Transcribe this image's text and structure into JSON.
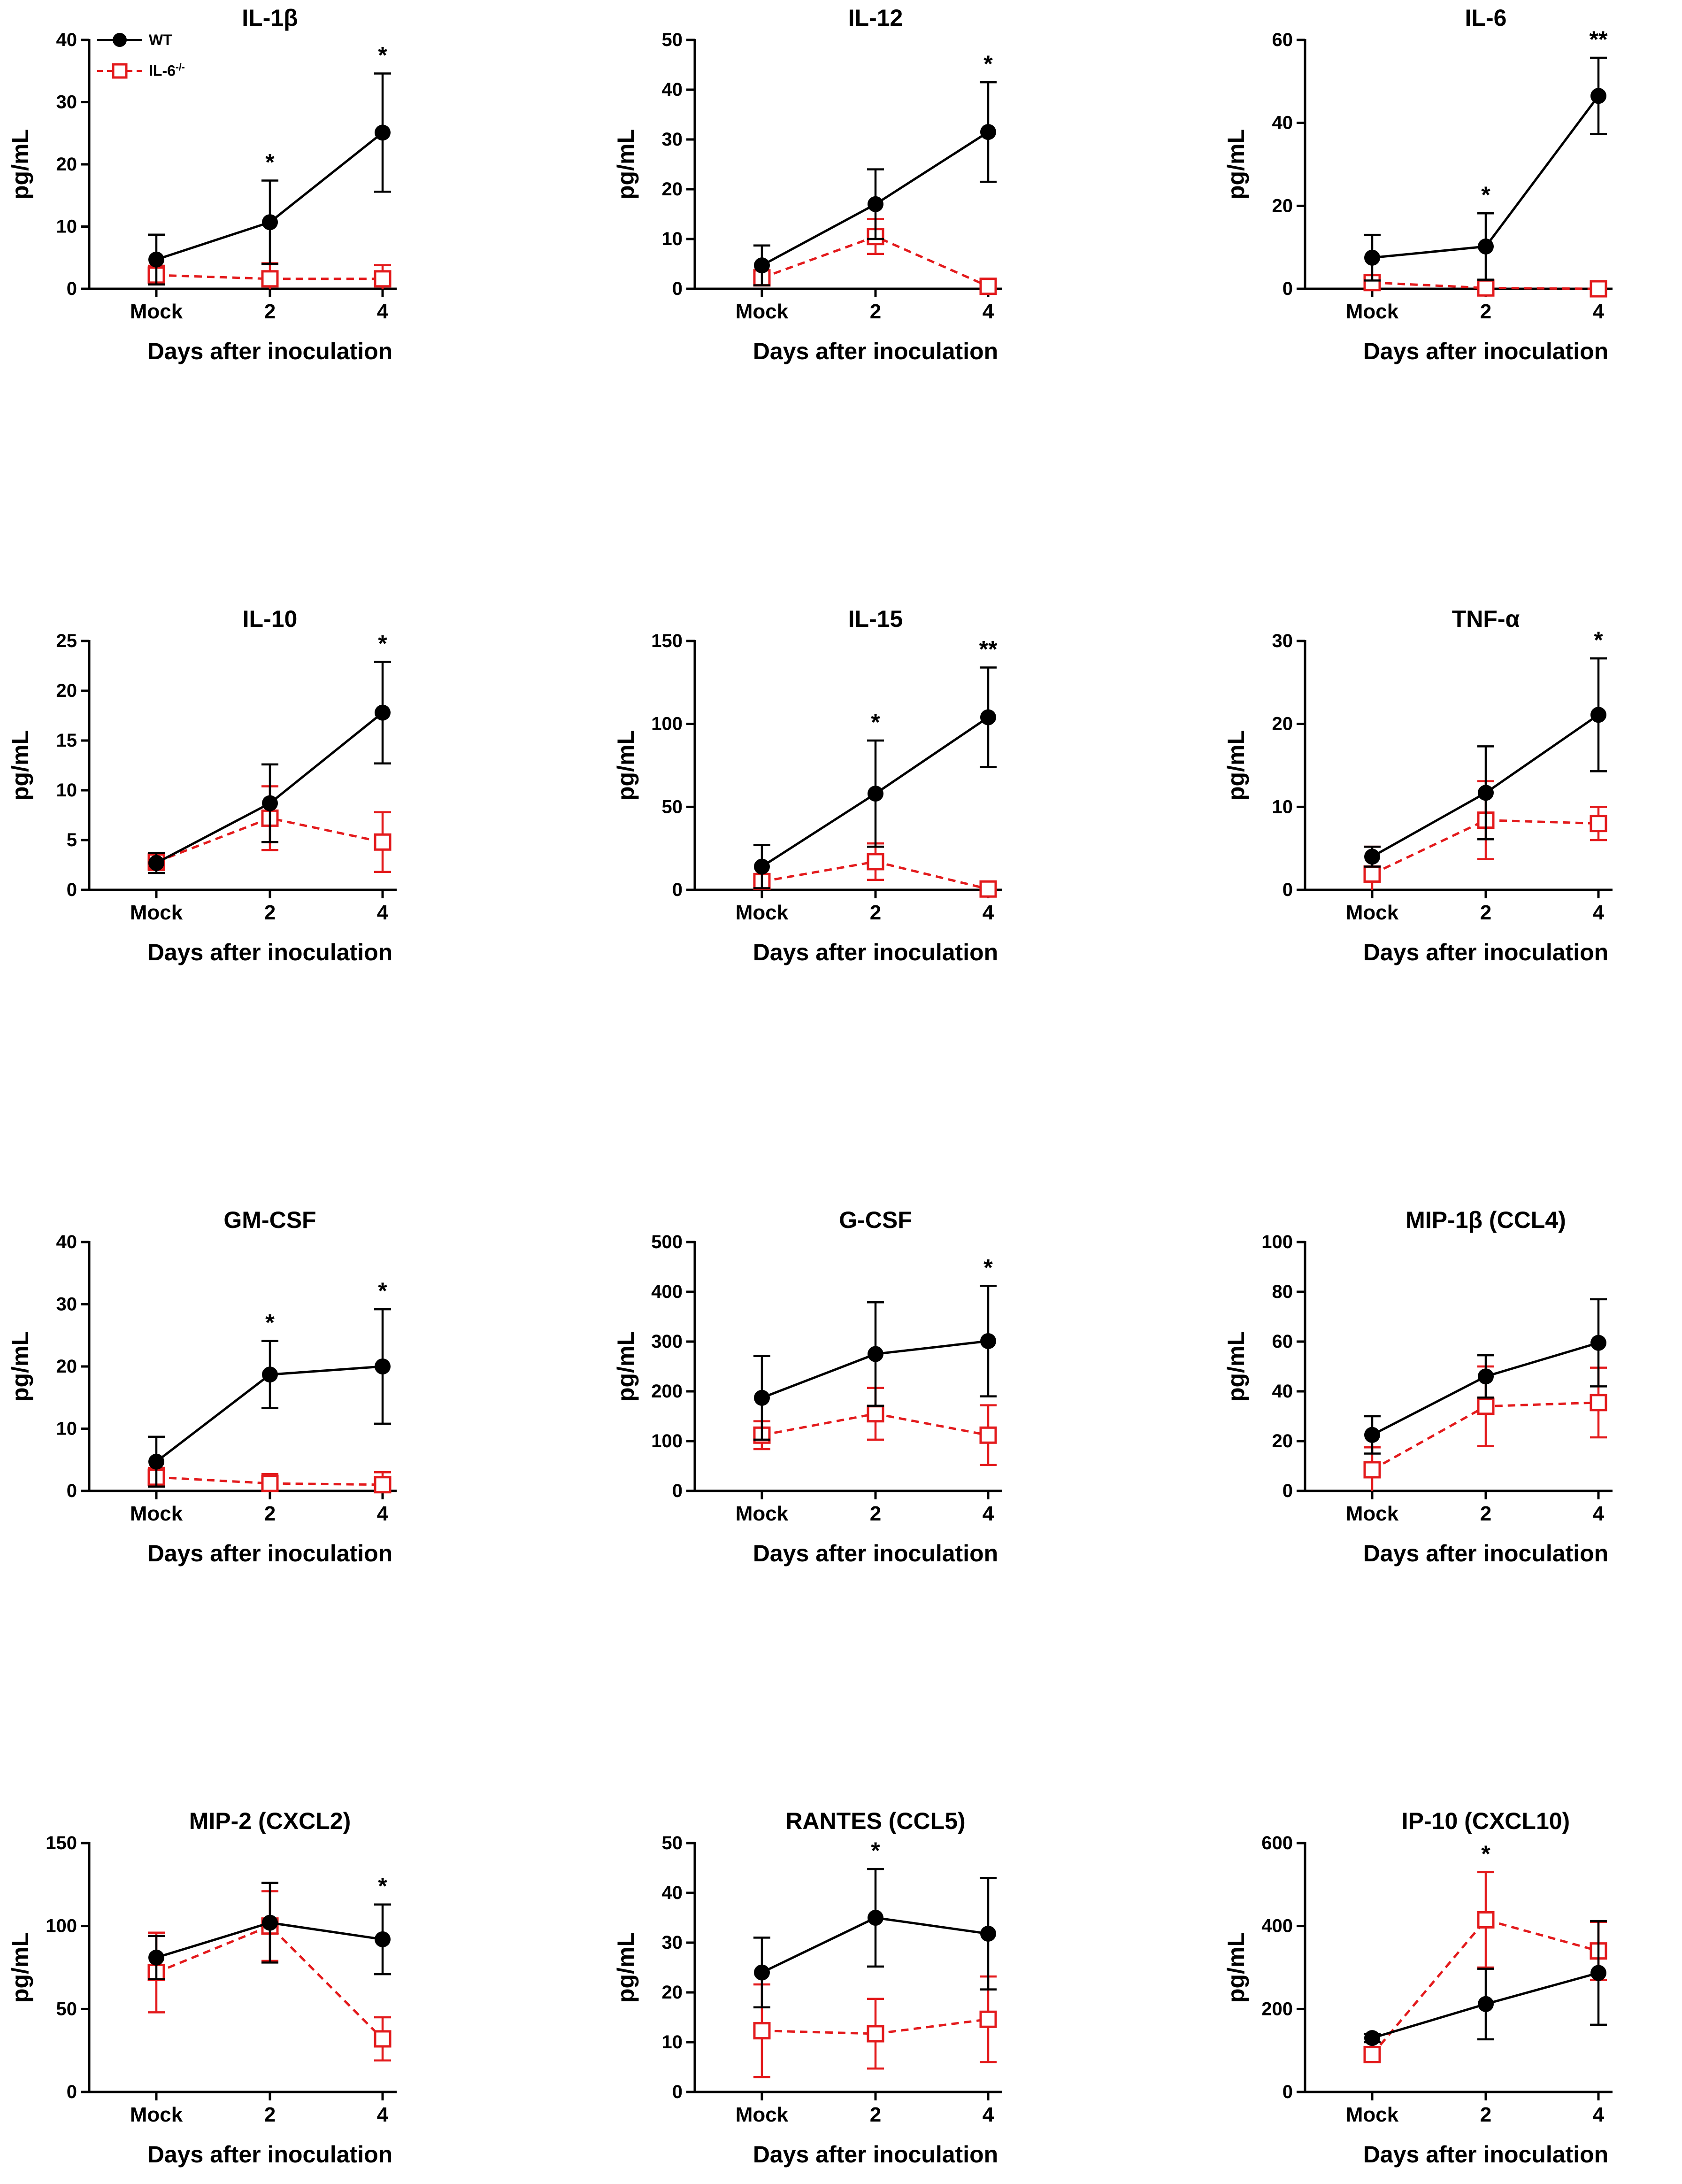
{
  "legend": {
    "wt_label": "WT",
    "ko_label": "IL-6",
    "ko_superscript": "-/-"
  },
  "colors": {
    "wt": "#000000",
    "ko": "#e31a1c"
  },
  "chart_data": [
    {
      "type": "line",
      "title": "IL-1β",
      "xlabel": "Days after inoculation",
      "ylabel": "pg/mL",
      "categories": [
        "Mock",
        "2",
        "4"
      ],
      "ylim": [
        0,
        40
      ],
      "yticks": [
        0,
        10,
        20,
        30,
        40
      ],
      "series": [
        {
          "name": "WT",
          "values": [
            4.7,
            10.7,
            25.1
          ],
          "errors": [
            4,
            6.7,
            9.5
          ]
        },
        {
          "name": "IL-6-/-",
          "values": [
            2.2,
            1.6,
            1.6
          ],
          "errors": [
            1.5,
            2.5,
            2.2
          ]
        }
      ],
      "significance": [
        "",
        "*",
        "*"
      ]
    },
    {
      "type": "line",
      "title": "IL-12",
      "xlabel": "Days after inoculation",
      "ylabel": "pg/mL",
      "categories": [
        "Mock",
        "2",
        "4"
      ],
      "ylim": [
        0,
        50
      ],
      "yticks": [
        0,
        10,
        20,
        30,
        40,
        50
      ],
      "series": [
        {
          "name": "WT",
          "values": [
            4.7,
            17,
            31.5
          ],
          "errors": [
            4,
            7,
            10
          ]
        },
        {
          "name": "IL-6-/-",
          "values": [
            2.2,
            10.5,
            0.5
          ],
          "errors": [
            1.5,
            3.5,
            0.8
          ]
        }
      ],
      "significance": [
        "",
        "",
        "*"
      ]
    },
    {
      "type": "line",
      "title": "IL-6",
      "xlabel": "Days after inoculation",
      "ylabel": "pg/mL",
      "categories": [
        "Mock",
        "2",
        "4"
      ],
      "ylim": [
        0,
        60
      ],
      "yticks": [
        0,
        20,
        40,
        60
      ],
      "series": [
        {
          "name": "WT",
          "values": [
            7.5,
            10.2,
            46.5
          ],
          "errors": [
            5.5,
            8,
            9.2
          ]
        },
        {
          "name": "IL-6-/-",
          "values": [
            1.5,
            0.2,
            0
          ],
          "errors": [
            1,
            0.5,
            0.2
          ]
        }
      ],
      "significance": [
        "",
        "*",
        "**"
      ]
    },
    {
      "type": "line",
      "title": "IL-10",
      "xlabel": "Days after inoculation",
      "ylabel": "pg/mL",
      "categories": [
        "Mock",
        "2",
        "4"
      ],
      "ylim": [
        0,
        25
      ],
      "yticks": [
        0,
        5,
        10,
        15,
        20,
        25
      ],
      "series": [
        {
          "name": "WT",
          "values": [
            2.7,
            8.7,
            17.8
          ],
          "errors": [
            1,
            3.9,
            5.1
          ]
        },
        {
          "name": "IL-6-/-",
          "values": [
            2.8,
            7.2,
            4.8
          ],
          "errors": [
            0.8,
            3.2,
            3
          ]
        }
      ],
      "significance": [
        "",
        "",
        "*"
      ]
    },
    {
      "type": "line",
      "title": "IL-15",
      "xlabel": "Days after inoculation",
      "ylabel": "pg/mL",
      "categories": [
        "Mock",
        "2",
        "4"
      ],
      "ylim": [
        0,
        150
      ],
      "yticks": [
        0,
        50,
        100,
        150
      ],
      "series": [
        {
          "name": "WT",
          "values": [
            14,
            58,
            104
          ],
          "errors": [
            13,
            32,
            30
          ]
        },
        {
          "name": "IL-6-/-",
          "values": [
            5,
            17,
            0.5
          ],
          "errors": [
            4,
            11,
            1
          ]
        }
      ],
      "significance": [
        "",
        "*",
        "**"
      ]
    },
    {
      "type": "line",
      "title": "TNF-α",
      "xlabel": "Days after inoculation",
      "ylabel": "pg/mL",
      "categories": [
        "Mock",
        "2",
        "4"
      ],
      "ylim": [
        0,
        30
      ],
      "yticks": [
        0,
        10,
        20,
        30
      ],
      "series": [
        {
          "name": "WT",
          "values": [
            4,
            11.7,
            21.1
          ],
          "errors": [
            1.2,
            5.6,
            6.8
          ]
        },
        {
          "name": "IL-6-/-",
          "values": [
            1.9,
            8.4,
            8
          ],
          "errors": [
            3.3,
            4.7,
            2
          ]
        }
      ],
      "significance": [
        "",
        "",
        "*"
      ]
    },
    {
      "type": "line",
      "title": "GM-CSF",
      "xlabel": "Days after inoculation",
      "ylabel": "pg/mL",
      "categories": [
        "Mock",
        "2",
        "4"
      ],
      "ylim": [
        0,
        40
      ],
      "yticks": [
        0,
        10,
        20,
        30,
        40
      ],
      "series": [
        {
          "name": "WT",
          "values": [
            4.7,
            18.7,
            20
          ],
          "errors": [
            4,
            5.4,
            9.2
          ]
        },
        {
          "name": "IL-6-/-",
          "values": [
            2.2,
            1.2,
            1
          ],
          "errors": [
            1.5,
            1.5,
            2
          ]
        }
      ],
      "significance": [
        "",
        "*",
        "*"
      ]
    },
    {
      "type": "line",
      "title": "G-CSF",
      "xlabel": "Days after inoculation",
      "ylabel": "pg/mL",
      "categories": [
        "Mock",
        "2",
        "4"
      ],
      "ylim": [
        0,
        500
      ],
      "yticks": [
        0,
        100,
        200,
        300,
        400,
        500
      ],
      "series": [
        {
          "name": "WT",
          "values": [
            187,
            275,
            301
          ],
          "errors": [
            84,
            104,
            111
          ]
        },
        {
          "name": "IL-6-/-",
          "values": [
            112,
            155,
            112
          ],
          "errors": [
            28,
            52,
            60
          ]
        }
      ],
      "significance": [
        "",
        "",
        "*"
      ]
    },
    {
      "type": "line",
      "title": "MIP-1β (CCL4)",
      "xlabel": "Days after inoculation",
      "ylabel": "pg/mL",
      "categories": [
        "Mock",
        "2",
        "4"
      ],
      "ylim": [
        0,
        100
      ],
      "yticks": [
        0,
        20,
        40,
        60,
        80,
        100
      ],
      "series": [
        {
          "name": "WT",
          "values": [
            22.5,
            46,
            59.5
          ],
          "errors": [
            7.5,
            8.5,
            17.5
          ]
        },
        {
          "name": "IL-6-/-",
          "values": [
            8.5,
            34,
            35.5
          ],
          "errors": [
            9,
            16,
            14
          ]
        }
      ],
      "significance": [
        "",
        "",
        ""
      ]
    },
    {
      "type": "line",
      "title": "MIP-2 (CXCL2)",
      "xlabel": "Days after inoculation",
      "ylabel": "pg/mL",
      "categories": [
        "Mock",
        "2",
        "4"
      ],
      "ylim": [
        0,
        150
      ],
      "yticks": [
        0,
        50,
        100,
        150
      ],
      "series": [
        {
          "name": "WT",
          "values": [
            81,
            102,
            92
          ],
          "errors": [
            13,
            24,
            21
          ]
        },
        {
          "name": "IL-6-/-",
          "values": [
            72,
            100,
            32
          ],
          "errors": [
            24,
            21,
            13
          ]
        }
      ],
      "significance": [
        "",
        "",
        "*"
      ]
    },
    {
      "type": "line",
      "title": "RANTES (CCL5)",
      "xlabel": "Days after inoculation",
      "ylabel": "pg/mL",
      "categories": [
        "Mock",
        "2",
        "4"
      ],
      "ylim": [
        0,
        50
      ],
      "yticks": [
        0,
        10,
        20,
        30,
        40,
        50
      ],
      "series": [
        {
          "name": "WT",
          "values": [
            24,
            35,
            31.8
          ],
          "errors": [
            7,
            9.8,
            11.2
          ]
        },
        {
          "name": "IL-6-/-",
          "values": [
            12.3,
            11.7,
            14.6
          ],
          "errors": [
            9.3,
            7,
            8.6
          ]
        }
      ],
      "significance": [
        "",
        "*",
        ""
      ]
    },
    {
      "type": "line",
      "title": "IP-10 (CXCL10)",
      "xlabel": "Days after inoculation",
      "ylabel": "pg/mL",
      "categories": [
        "Mock",
        "2",
        "4"
      ],
      "ylim": [
        0,
        600
      ],
      "yticks": [
        0,
        200,
        400,
        600
      ],
      "series": [
        {
          "name": "WT",
          "values": [
            130,
            212,
            287
          ],
          "errors": [
            10,
            85,
            125
          ]
        },
        {
          "name": "IL-6-/-",
          "values": [
            90,
            415,
            340
          ],
          "errors": [
            15,
            115,
            70
          ]
        }
      ],
      "significance": [
        "",
        "*",
        ""
      ]
    }
  ]
}
